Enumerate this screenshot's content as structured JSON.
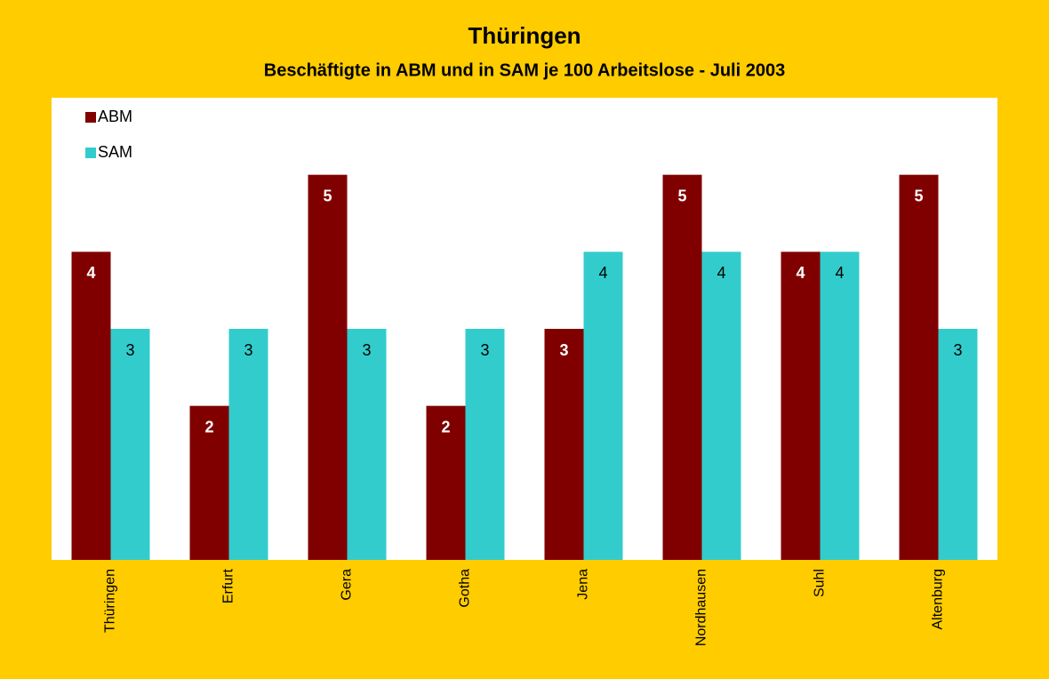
{
  "chart_data": {
    "type": "bar",
    "title": "Thüringen",
    "subtitle": "Beschäftigte in ABM und in SAM je 100 Arbeitslose  -  Juli 2003",
    "categories": [
      "Thüringen",
      "Erfurt",
      "Gera",
      "Gotha",
      "Jena",
      "Nordhausen",
      "Suhl",
      "Altenburg"
    ],
    "series": [
      {
        "name": "ABM",
        "color": "#800000",
        "values": [
          4,
          2,
          5,
          2,
          3,
          5,
          4,
          5
        ]
      },
      {
        "name": "SAM",
        "color": "#33CCCC",
        "values": [
          3,
          3,
          3,
          3,
          4,
          4,
          4,
          3
        ]
      }
    ],
    "ylim": [
      0,
      6
    ],
    "legend": "top-left"
  }
}
